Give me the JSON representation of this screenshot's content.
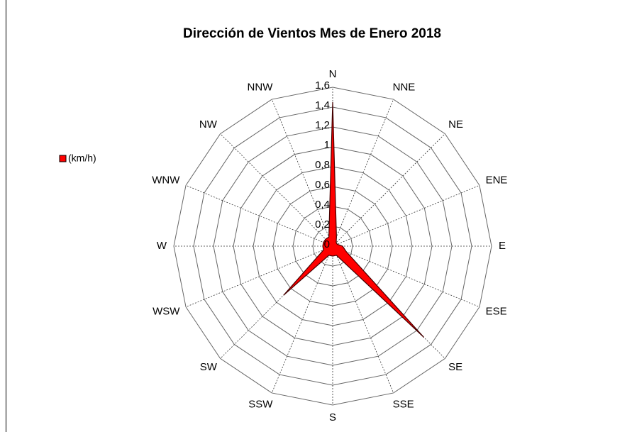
{
  "chart_data": {
    "type": "radar",
    "title": "Dirección de Vientos Mes de Enero 2018",
    "categories": [
      "N",
      "NNE",
      "NE",
      "ENE",
      "E",
      "ESE",
      "SE",
      "SSE",
      "S",
      "SSW",
      "SW",
      "WSW",
      "W",
      "WNW",
      "NW",
      "NNW"
    ],
    "series": [
      {
        "name": "(km/h)",
        "color": "#ff0000",
        "values": [
          1.45,
          0.1,
          0.05,
          0.05,
          0.1,
          0.15,
          1.3,
          0.1,
          0.1,
          0.1,
          0.7,
          0.1,
          0.1,
          0.1,
          0.1,
          0.1
        ]
      }
    ],
    "ylim": [
      0,
      1.6
    ],
    "yticks": [
      0,
      {
        "value": 0.2,
        "label": "0,2"
      },
      {
        "value": 0.4,
        "label": "0,4"
      },
      {
        "value": 0.6,
        "label": "0,6"
      },
      {
        "value": 0.8,
        "label": "0,8"
      },
      1,
      {
        "value": 1.2,
        "label": "1,2"
      },
      {
        "value": 1.4,
        "label": "1,4"
      },
      {
        "value": 1.6,
        "label": "1,6"
      }
    ],
    "grid": true,
    "legend": "left"
  }
}
